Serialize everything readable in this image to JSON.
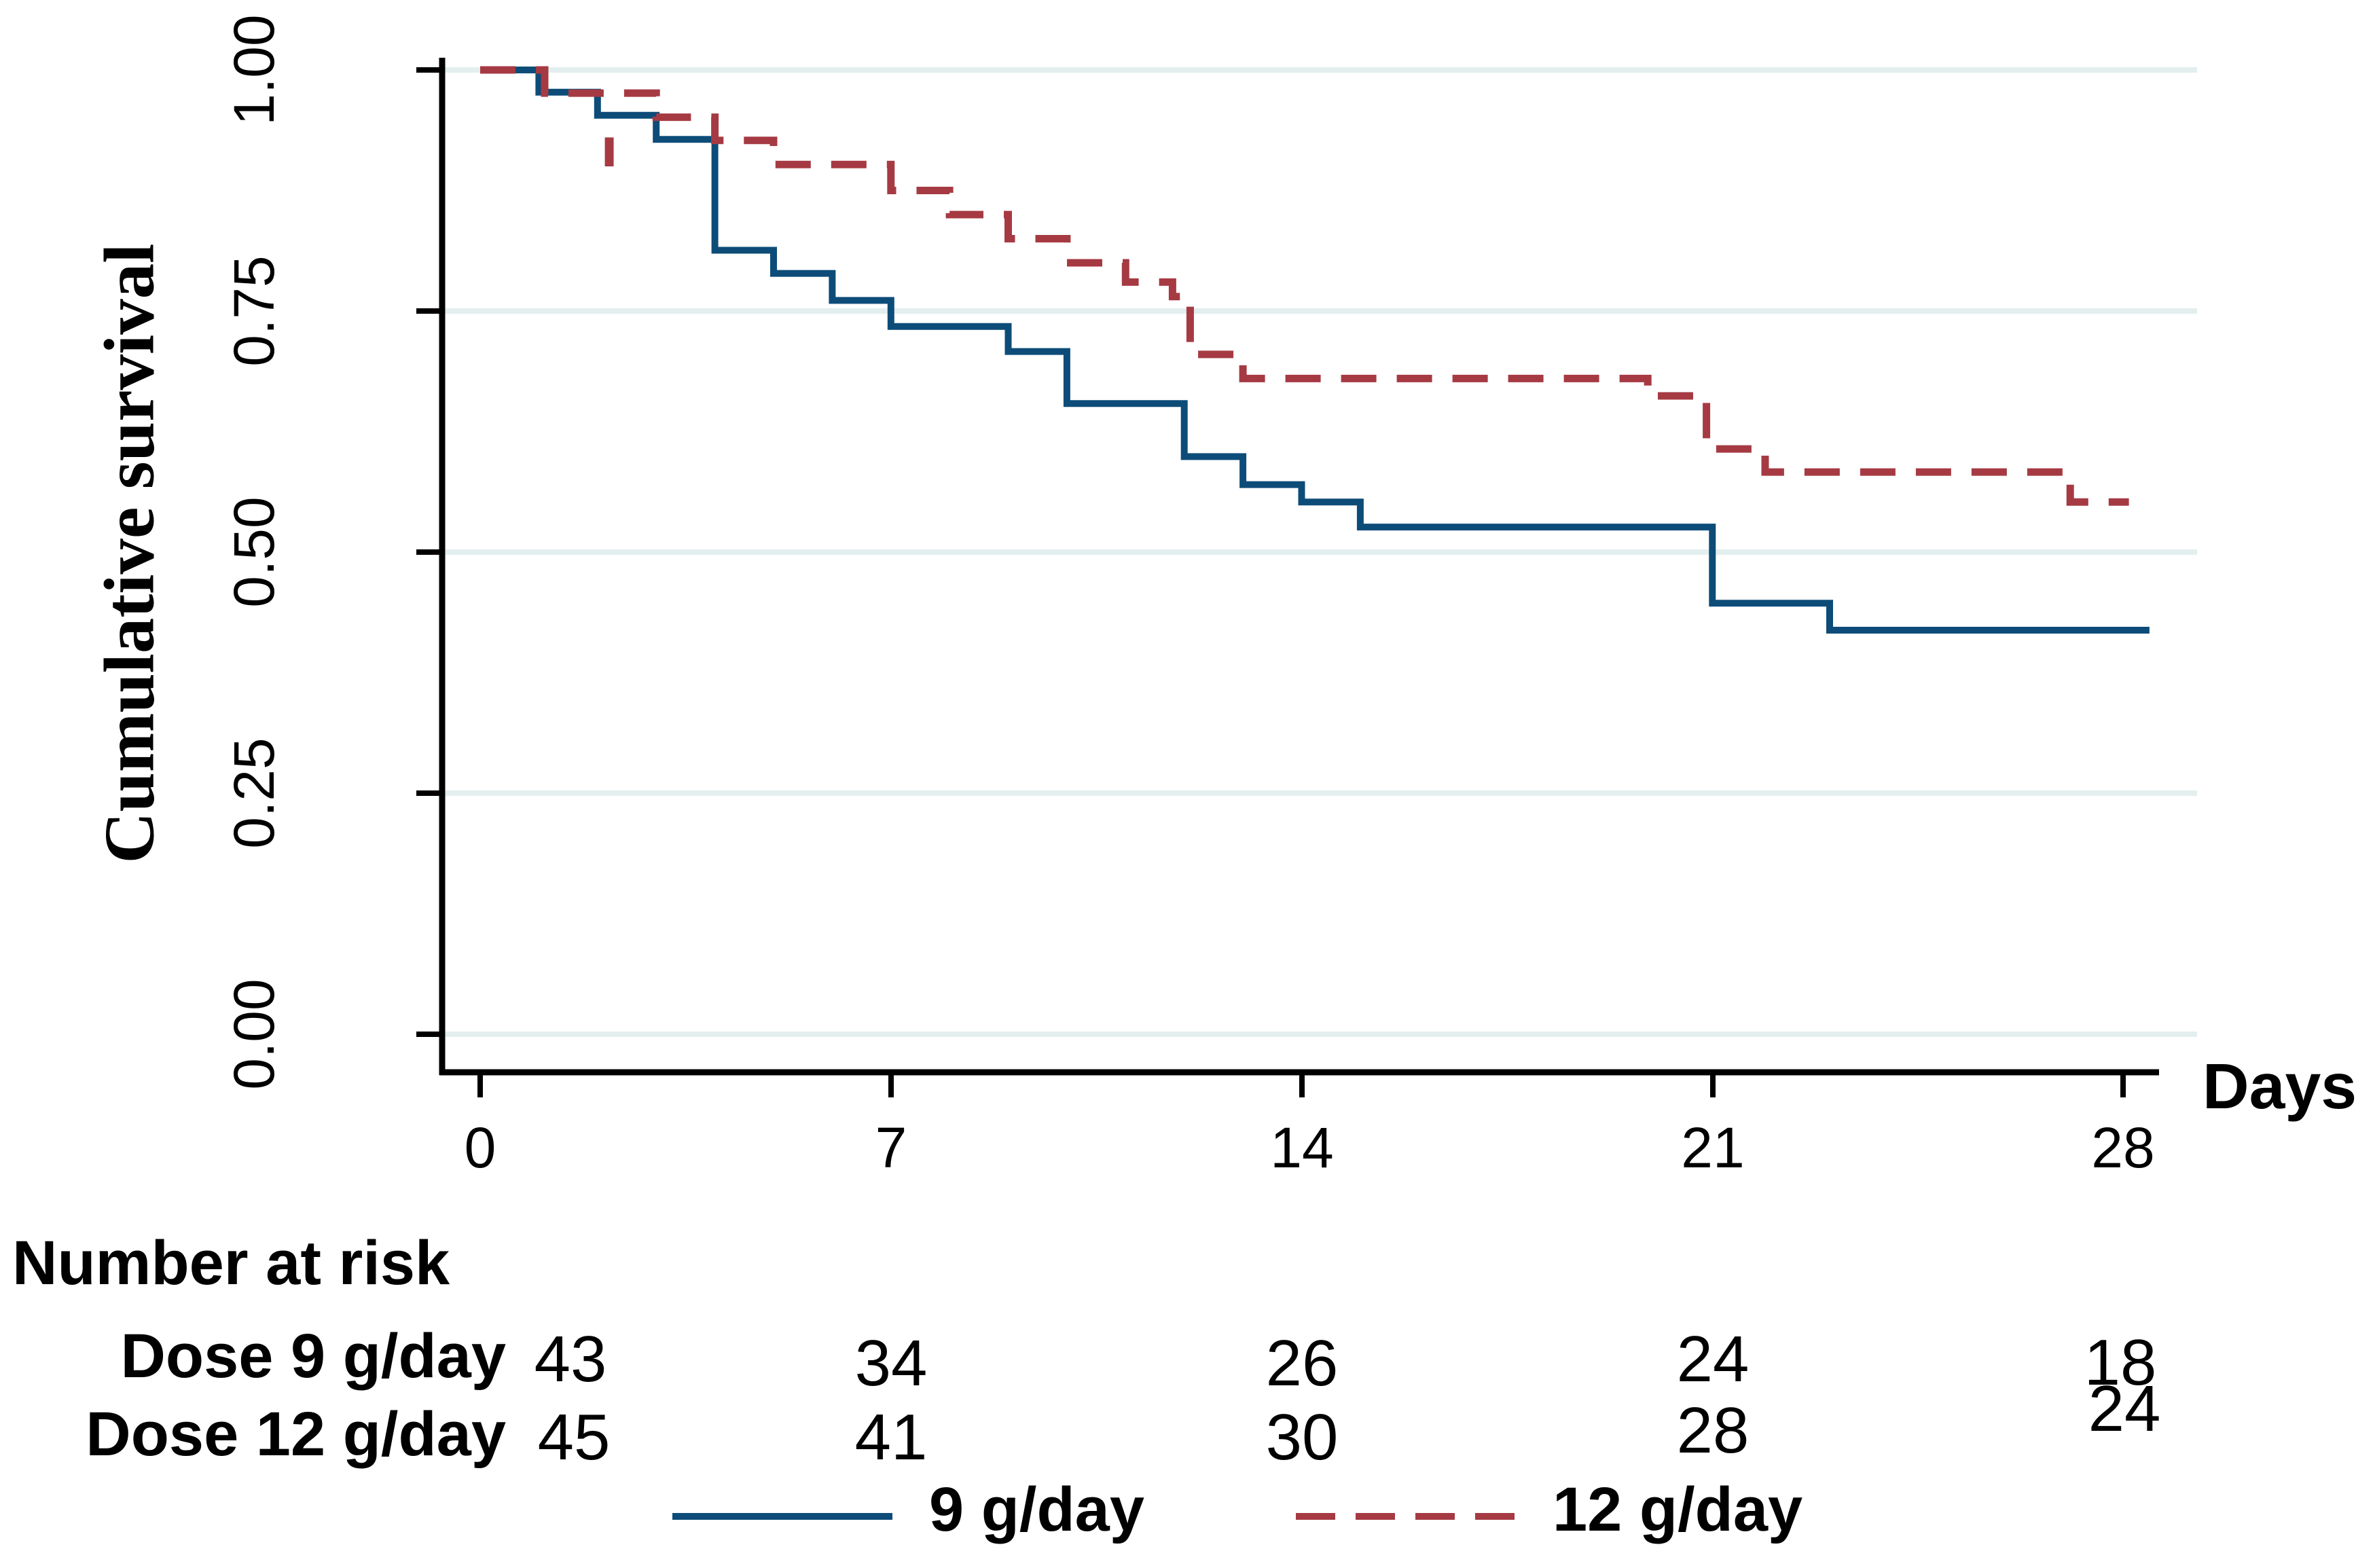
{
  "colors": {
    "blue": "#0d4c78",
    "red": "#a63a43",
    "grid": "#e3efef",
    "axis": "#000000",
    "background": "#ffffff"
  },
  "chart_data": {
    "type": "line",
    "subtype": "kaplan-meier-step",
    "title": "",
    "xlabel": "Days",
    "ylabel": "Cumulative survival",
    "xlim": [
      0,
      28
    ],
    "ylim": [
      0.0,
      1.0
    ],
    "x_ticks": [
      0,
      7,
      14,
      21,
      28
    ],
    "x_tick_labels": [
      "0",
      "7",
      "14",
      "21",
      "28"
    ],
    "y_ticks": [
      1.0,
      0.75,
      0.5,
      0.25,
      0.0
    ],
    "y_tick_labels": [
      "1.00",
      "0.75",
      "0.50",
      "0.25",
      "0.00"
    ],
    "grid": "horizontal-gridlines-on",
    "legend_position": "bottom-center",
    "series": [
      {
        "name": "9 g/day",
        "color": "#0d4c78",
        "style": "solid",
        "points": [
          [
            0,
            1.0
          ],
          [
            1,
            0.977
          ],
          [
            2,
            0.953
          ],
          [
            3,
            0.928
          ],
          [
            4,
            0.813
          ],
          [
            5,
            0.789
          ],
          [
            6,
            0.761
          ],
          [
            7,
            0.734
          ],
          [
            9,
            0.708
          ],
          [
            10,
            0.654
          ],
          [
            12,
            0.599
          ],
          [
            13,
            0.57
          ],
          [
            14,
            0.552
          ],
          [
            15,
            0.526
          ],
          [
            21,
            0.447
          ],
          [
            23,
            0.419
          ],
          [
            28.45,
            0.419
          ]
        ],
        "censor_marks": []
      },
      {
        "name": "12 g/day",
        "color": "#a63a43",
        "style": "dashed",
        "points": [
          [
            0,
            1.0
          ],
          [
            1.1,
            0.976
          ],
          [
            3,
            0.951
          ],
          [
            4,
            0.927
          ],
          [
            5,
            0.902
          ],
          [
            7,
            0.875
          ],
          [
            8,
            0.85
          ],
          [
            9,
            0.825
          ],
          [
            10,
            0.8
          ],
          [
            11,
            0.78
          ],
          [
            11.8,
            0.765
          ],
          [
            12.1,
            0.705
          ],
          [
            13,
            0.68
          ],
          [
            19.9,
            0.662
          ],
          [
            20.9,
            0.607
          ],
          [
            21.9,
            0.583
          ],
          [
            27.1,
            0.552
          ],
          [
            28.1,
            0.552
          ]
        ],
        "censor_marks": [
          {
            "x": 2.2,
            "y_from": 0.9,
            "y_to": 0.93
          }
        ]
      }
    ]
  },
  "risk_table": {
    "title": "Number at risk",
    "time_points": [
      "0",
      "7",
      "14",
      "21",
      "28"
    ],
    "rows": [
      {
        "label": "Dose 9 g/day",
        "values": [
          "43",
          "34",
          "26",
          "24",
          "18"
        ]
      },
      {
        "label": "Dose 12 g/day",
        "values": [
          "45",
          "41",
          "30",
          "28",
          "24"
        ]
      }
    ]
  },
  "legend": {
    "items": [
      {
        "label": "9 g/day",
        "color": "#0d4c78",
        "style": "solid"
      },
      {
        "label": "12 g/day",
        "color": "#a63a43",
        "style": "dashed"
      }
    ]
  }
}
